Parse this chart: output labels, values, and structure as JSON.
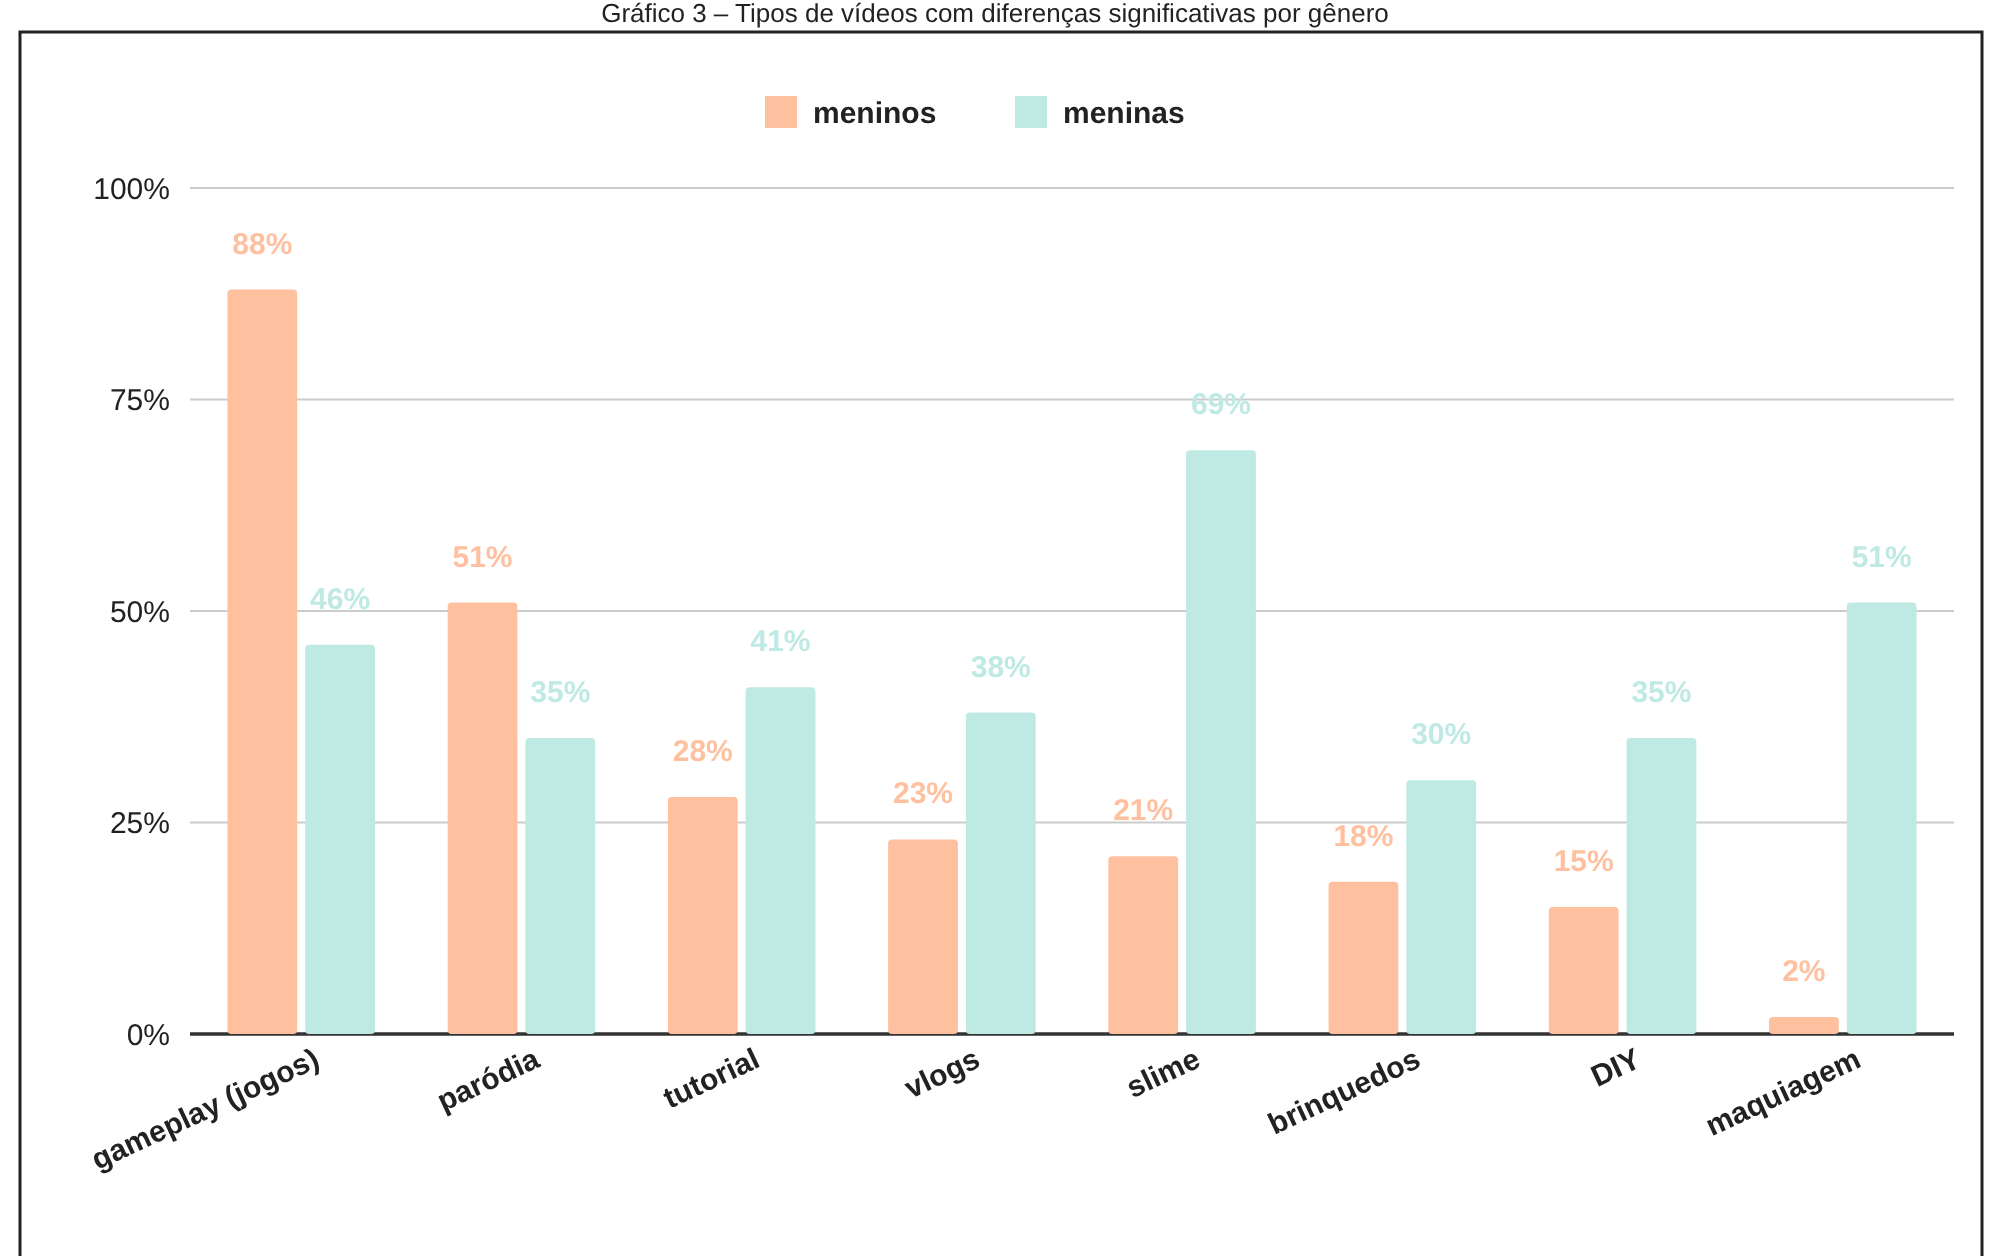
{
  "chart_data": {
    "type": "bar",
    "title": "Gráfico 3 – Tipos de vídeos com diferenças significativas por gênero",
    "categories": [
      "gameplay (jogos)",
      "paródia",
      "tutorial",
      "vlogs",
      "slime",
      "brinquedos",
      "DIY",
      "maquiagem"
    ],
    "series": [
      {
        "name": "meninos",
        "color": "#ffc09f",
        "values": [
          88,
          51,
          28,
          23,
          21,
          18,
          15,
          2
        ],
        "value_labels": [
          "88%",
          "51%",
          "28%",
          "23%",
          "21%",
          "18%",
          "15%",
          "2%"
        ]
      },
      {
        "name": "meninas",
        "color": "#bfe9e3",
        "values": [
          46,
          35,
          41,
          38,
          69,
          30,
          35,
          51
        ],
        "value_labels": [
          "46%",
          "35%",
          "41%",
          "38%",
          "69%",
          "30%",
          "35%",
          "51%"
        ]
      }
    ],
    "ylim": [
      0,
      100
    ],
    "yticks": [
      {
        "value": 0,
        "label": "0%"
      },
      {
        "value": 25,
        "label": "25%"
      },
      {
        "value": 50,
        "label": "50%"
      },
      {
        "value": 75,
        "label": "75%"
      },
      {
        "value": 100,
        "label": "100%"
      }
    ],
    "grid": "y",
    "legend": "top"
  }
}
